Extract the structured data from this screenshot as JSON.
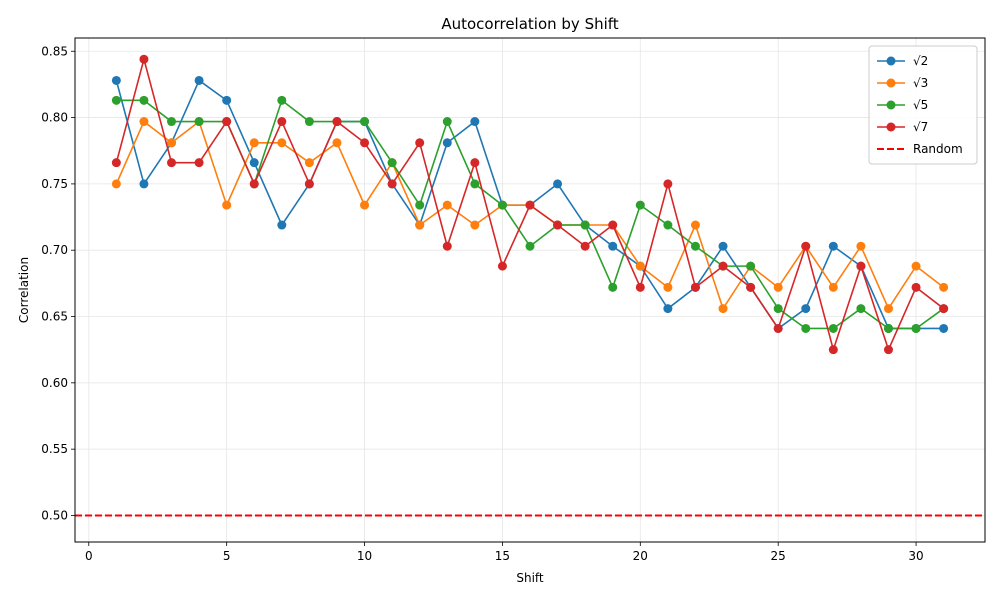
{
  "chart_data": {
    "type": "line",
    "title": "Autocorrelation by Shift",
    "xlabel": "Shift",
    "ylabel": "Correlation",
    "xlim": [
      -0.5,
      32.5
    ],
    "ylim": [
      0.48,
      0.86
    ],
    "xticks": [
      0,
      5,
      10,
      15,
      20,
      25,
      30
    ],
    "yticks": [
      0.5,
      0.55,
      0.6,
      0.65,
      0.7,
      0.75,
      0.8,
      0.85
    ],
    "ytick_labels": [
      "0.50",
      "0.55",
      "0.60",
      "0.65",
      "0.70",
      "0.75",
      "0.80",
      "0.85"
    ],
    "grid": true,
    "legend_position": "top-right",
    "x": [
      1,
      2,
      3,
      4,
      5,
      6,
      7,
      8,
      9,
      10,
      11,
      12,
      13,
      14,
      15,
      16,
      17,
      18,
      19,
      20,
      21,
      22,
      23,
      24,
      25,
      26,
      27,
      28,
      29,
      30,
      31
    ],
    "series": [
      {
        "name": "√2",
        "color": "#1f77b4",
        "values": [
          0.828,
          0.75,
          0.781,
          0.828,
          0.813,
          0.766,
          0.719,
          0.75,
          0.797,
          0.797,
          0.75,
          0.719,
          0.781,
          0.797,
          0.734,
          0.734,
          0.75,
          0.719,
          0.703,
          0.688,
          0.656,
          0.672,
          0.703,
          0.672,
          0.641,
          0.656,
          0.703,
          0.688,
          0.641,
          0.641,
          0.641
        ]
      },
      {
        "name": "√3",
        "color": "#ff7f0e",
        "values": [
          0.75,
          0.797,
          0.781,
          0.797,
          0.734,
          0.781,
          0.781,
          0.766,
          0.781,
          0.734,
          0.766,
          0.719,
          0.734,
          0.719,
          0.734,
          0.734,
          0.719,
          0.719,
          0.719,
          0.688,
          0.672,
          0.719,
          0.656,
          0.688,
          0.672,
          0.703,
          0.672,
          0.703,
          0.656,
          0.688,
          0.672
        ]
      },
      {
        "name": "√5",
        "color": "#2ca02c",
        "values": [
          0.813,
          0.813,
          0.797,
          0.797,
          0.797,
          0.75,
          0.813,
          0.797,
          0.797,
          0.797,
          0.766,
          0.734,
          0.797,
          0.75,
          0.734,
          0.703,
          0.719,
          0.719,
          0.672,
          0.734,
          0.719,
          0.703,
          0.688,
          0.688,
          0.656,
          0.641,
          0.641,
          0.656,
          0.641,
          0.641,
          0.656
        ]
      },
      {
        "name": "√7",
        "color": "#d62728",
        "values": [
          0.766,
          0.844,
          0.766,
          0.766,
          0.797,
          0.75,
          0.797,
          0.75,
          0.797,
          0.781,
          0.75,
          0.781,
          0.703,
          0.766,
          0.688,
          0.734,
          0.719,
          0.703,
          0.719,
          0.672,
          0.75,
          0.672,
          0.688,
          0.672,
          0.641,
          0.703,
          0.625,
          0.688,
          0.625,
          0.672,
          0.656
        ]
      }
    ],
    "reference_line": {
      "name": "Random",
      "value": 0.5,
      "color": "#ff0000",
      "style": "dashed"
    }
  }
}
